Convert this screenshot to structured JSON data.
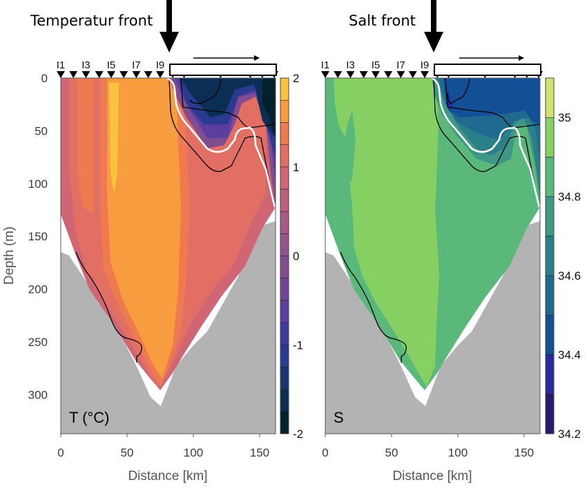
{
  "chart_data": [
    {
      "type": "heatmap",
      "title": "Temperatur front",
      "panel_label": "T (°C)",
      "xlabel": "Distance [km]",
      "ylabel": "Depth (m)",
      "xlim": [
        0,
        162
      ],
      "ylim": [
        337,
        0
      ],
      "xticks": [
        0,
        50,
        100,
        150
      ],
      "yticks": [
        0,
        50,
        100,
        150,
        200,
        250,
        300
      ],
      "stations": [
        "I1",
        "I3",
        "I5",
        "I7",
        "I9"
      ],
      "station_positions_km": [
        0,
        9.5,
        19,
        29,
        38,
        47.5,
        57,
        66,
        75,
        84.5,
        93,
        120.5,
        143,
        152,
        161
      ],
      "front_position_km": 84,
      "colorbar": {
        "min": -2,
        "max": 2,
        "step": 0.25,
        "ticks": [
          -2,
          -1,
          0,
          1,
          2
        ],
        "colors": [
          "#04202e",
          "#0b2e55",
          "#16366f",
          "#2a3a8f",
          "#3f3aa0",
          "#5a3f9e",
          "#6e4696",
          "#824c91",
          "#95538c",
          "#a95986",
          "#bd5f7d",
          "#d06574",
          "#e26f64",
          "#f07a50",
          "#f79c3f",
          "#f9c340"
        ]
      },
      "fields": {
        "description": "Warm core (1.25–1.75 °C) between ~20–80 km; cold water (<-1.5 °C) upper-right 90–160 km, 0–60 m",
        "core_value": 1.5,
        "cold_value": -1.75
      }
    },
    {
      "type": "heatmap",
      "title": "Salt front",
      "panel_label": "S",
      "xlabel": "Distance [km]",
      "ylabel": "",
      "xlim": [
        0,
        162
      ],
      "ylim": [
        337,
        0
      ],
      "xticks": [
        0,
        50,
        100,
        150
      ],
      "stations": [
        "I1",
        "I3",
        "I5",
        "I7",
        "I9"
      ],
      "station_positions_km": [
        0,
        9.5,
        19,
        29,
        38,
        47.5,
        57,
        66,
        75,
        84.5,
        93,
        120.5,
        143,
        152,
        161
      ],
      "front_position_km": 82,
      "colorbar": {
        "min": 34.2,
        "max": 35.1,
        "step": 0.1,
        "ticks": [
          34.2,
          34.4,
          34.6,
          34.8,
          35
        ],
        "colors": [
          "#2a1a6e",
          "#2a2aa0",
          "#134f95",
          "#1f6a8e",
          "#2b7f89",
          "#3e9884",
          "#5ab87a",
          "#86d063",
          "#d3e26e"
        ]
      },
      "fields": {
        "description": "Salty core (34.9–35.0) between ~10–80 km; fresher water (34.4–34.5) upper-right 90–160 km, 0–60 m",
        "core_value": 34.95,
        "fresh_value": 34.45
      }
    }
  ]
}
